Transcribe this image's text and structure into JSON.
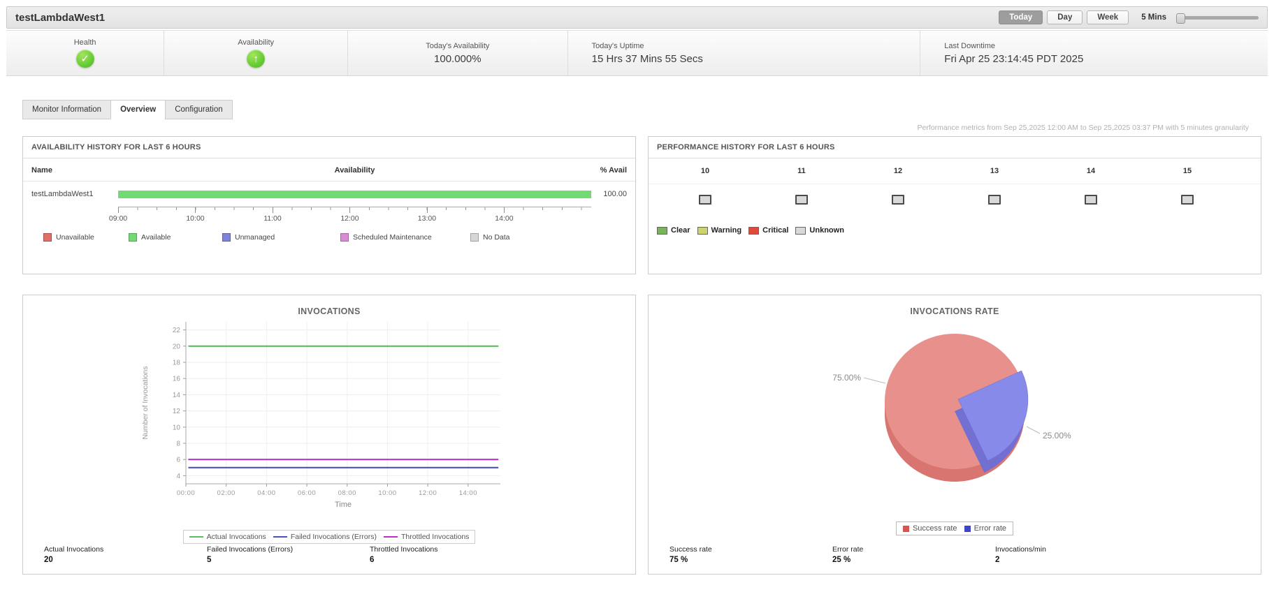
{
  "header": {
    "title": "testLambdaWest1",
    "period_buttons": [
      {
        "label": "Today",
        "active": true
      },
      {
        "label": "Day",
        "active": false
      },
      {
        "label": "Week",
        "active": false
      }
    ],
    "granularity_label": "5 Mins"
  },
  "status": {
    "items": [
      {
        "label": "Health",
        "icon": "check-circle-icon",
        "value": ""
      },
      {
        "label": "Availability",
        "icon": "up-arrow-circle-icon",
        "value": ""
      },
      {
        "label": "Today's Availability",
        "icon": "",
        "value": "100.000%"
      },
      {
        "label": "Today's Uptime",
        "icon": "",
        "value": "15 Hrs 37 Mins 55 Secs"
      },
      {
        "label": "Last Downtime",
        "icon": "",
        "value": "Fri Apr 25 23:14:45 PDT 2025"
      }
    ]
  },
  "tabs": [
    {
      "label": "Monitor Information",
      "active": false
    },
    {
      "label": "Overview",
      "active": true
    },
    {
      "label": "Configuration",
      "active": false
    }
  ],
  "metrics_note": "Performance metrics from Sep 25,2025 12:00 AM to Sep 25,2025 03:37 PM with 5 minutes granularity",
  "availability_panel": {
    "title": "AVAILABILITY HISTORY FOR LAST 6 HOURS",
    "columns": {
      "name": "Name",
      "availability": "Availability",
      "pct": "% Avail"
    },
    "row": {
      "name": "testLambdaWest1",
      "pct": "100.00",
      "bar_color": "#72da72"
    },
    "axis_ticks": [
      "09:00",
      "10:00",
      "11:00",
      "12:00",
      "13:00",
      "14:00"
    ],
    "legend": [
      {
        "label": "Unavailable",
        "color": "#df6e66"
      },
      {
        "label": "Available",
        "color": "#72da72"
      },
      {
        "label": "Unmanaged",
        "color": "#8081d8"
      },
      {
        "label": "Scheduled Maintenance",
        "color": "#d98bd4"
      },
      {
        "label": "No Data",
        "color": "#d6d6d6"
      }
    ]
  },
  "performance_panel": {
    "title": "PERFORMANCE HISTORY FOR LAST 6 HOURS",
    "hours": [
      "10",
      "11",
      "12",
      "13",
      "14",
      "15"
    ],
    "cell_state": "unknown",
    "legend": [
      {
        "label": "Clear",
        "color": "#79b558"
      },
      {
        "label": "Warning",
        "color": "#ccd56d"
      },
      {
        "label": "Critical",
        "color": "#dd4b3f"
      },
      {
        "label": "Unknown",
        "color": "#d9d9d9"
      }
    ]
  },
  "invocations_panel": {
    "stats": [
      {
        "label": "Actual Invocations",
        "value": "20"
      },
      {
        "label": "Failed Invocations (Errors)",
        "value": "5"
      },
      {
        "label": "Throttled Invocations",
        "value": "6"
      }
    ]
  },
  "rate_panel": {
    "stats": [
      {
        "label": "Success rate",
        "value": "75 %"
      },
      {
        "label": "Error rate",
        "value": "25 %"
      },
      {
        "label": "Invocations/min",
        "value": "2"
      }
    ]
  },
  "chart_data": [
    {
      "type": "line",
      "title": "INVOCATIONS",
      "xlabel": "Time",
      "ylabel": "Number of Invocations",
      "x_ticks": [
        "00:00",
        "02:00",
        "04:00",
        "06:00",
        "08:00",
        "10:00",
        "12:00",
        "14:00"
      ],
      "x_tick_hours": [
        0,
        2,
        4,
        6,
        8,
        10,
        12,
        14
      ],
      "x_range_hours": [
        0,
        15.6
      ],
      "ylim": [
        3,
        23
      ],
      "y_ticks": [
        4,
        6,
        8,
        10,
        12,
        14,
        16,
        18,
        20,
        22
      ],
      "grid": true,
      "legend_position": "bottom",
      "series": [
        {
          "name": "Actual Invocations",
          "color": "#5bbd5b",
          "constant_value": 20
        },
        {
          "name": "Failed Invocations (Errors)",
          "color": "#4d52bb",
          "constant_value": 5
        },
        {
          "name": "Throttled Invocations",
          "color": "#bb2fcc",
          "constant_value": 6
        }
      ]
    },
    {
      "type": "pie",
      "title": "INVOCATIONS RATE",
      "legend_position": "bottom",
      "slices": [
        {
          "label": "Success rate",
          "value": 75,
          "display": "75.00%",
          "top_color": "#e8908b",
          "side_color": "#d97570",
          "legend_color": "#d9534f"
        },
        {
          "label": "Error rate",
          "value": 25,
          "display": "25.00%",
          "top_color": "#878ae9",
          "side_color": "#6d6fd6",
          "legend_color": "#4045c8"
        }
      ]
    }
  ]
}
